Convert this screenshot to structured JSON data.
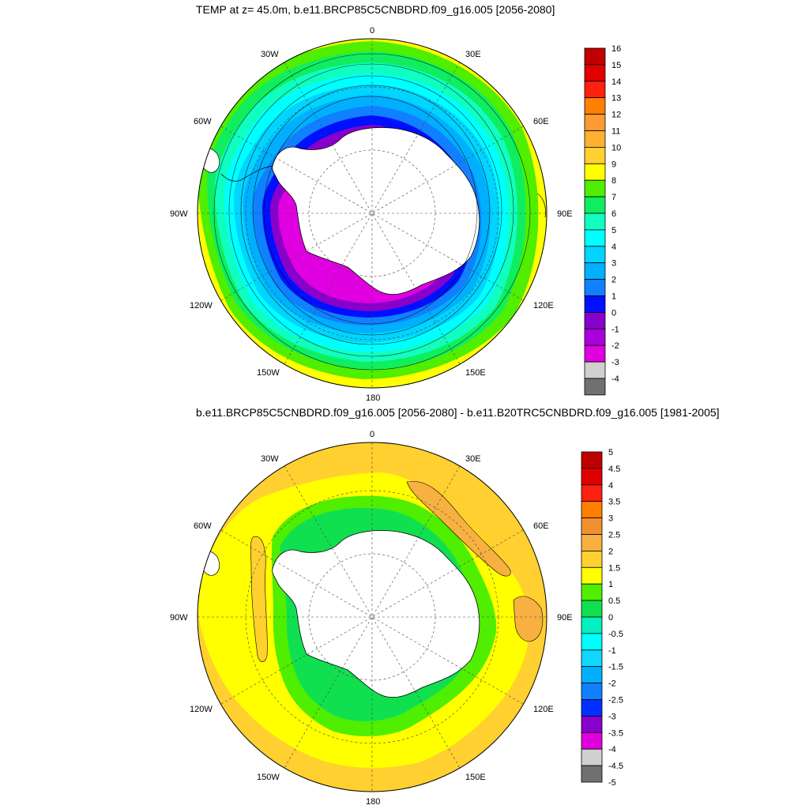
{
  "panel1": {
    "title": "TEMP at z=  45.0m, b.e11.BRCP85C5CNBDRD.f09_g16.005 [2056-2080]",
    "colorbar": {
      "labels": [
        "16",
        "15",
        "14",
        "13",
        "12",
        "11",
        "10",
        "9",
        "8",
        "7",
        "6",
        "5",
        "4",
        "3",
        "2",
        "1",
        "0",
        "-1",
        "-2",
        "-3",
        "-4"
      ],
      "colors": [
        "#c00000",
        "#e00000",
        "#ff2010",
        "#ff8000",
        "#ff9933",
        "#ffb030",
        "#ffd030",
        "#ffff00",
        "#50ee00",
        "#10ee60",
        "#10ffc0",
        "#00ffff",
        "#00d4ff",
        "#00b0ff",
        "#1080ff",
        "#0010ff",
        "#8800cc",
        "#aa00dd",
        "#e000e0",
        "#d0d0d0",
        "#707070"
      ]
    }
  },
  "panel2": {
    "title": "b.e11.BRCP85C5CNBDRD.f09_g16.005 [2056-2080] - b.e11.B20TRC5CNBDRD.f09_g16.005 [1981-2005]",
    "colorbar": {
      "labels": [
        "5",
        "4.5",
        "4",
        "3.5",
        "3",
        "2.5",
        "2",
        "1.5",
        "1",
        "0.5",
        "0",
        "-0.5",
        "-1",
        "-1.5",
        "-2",
        "-2.5",
        "-3",
        "-3.5",
        "-4",
        "-4.5",
        "-5"
      ],
      "colors": [
        "#c00000",
        "#e00000",
        "#ff2010",
        "#ff8000",
        "#f09030",
        "#f8b040",
        "#ffd030",
        "#ffff00",
        "#50ee00",
        "#10e050",
        "#00f0c0",
        "#00ffff",
        "#10d8ff",
        "#00b0ff",
        "#1080ff",
        "#0030ff",
        "#8800cc",
        "#e000e0",
        "#d0d0d0",
        "#707070"
      ]
    }
  },
  "map_labels": {
    "lon_top": "0",
    "lon_30w": "30W",
    "lon_30e": "30E",
    "lon_60w": "60W",
    "lon_60e": "60E",
    "lon_90w": "90W",
    "lon_90e": "90E",
    "lon_120w": "120W",
    "lon_120e": "120E",
    "lon_150w": "150W",
    "lon_150e": "150E",
    "lon_bottom": "180"
  },
  "map_colors": {
    "land": "#ffffff",
    "outline": "#000000",
    "grid": "#444444"
  }
}
